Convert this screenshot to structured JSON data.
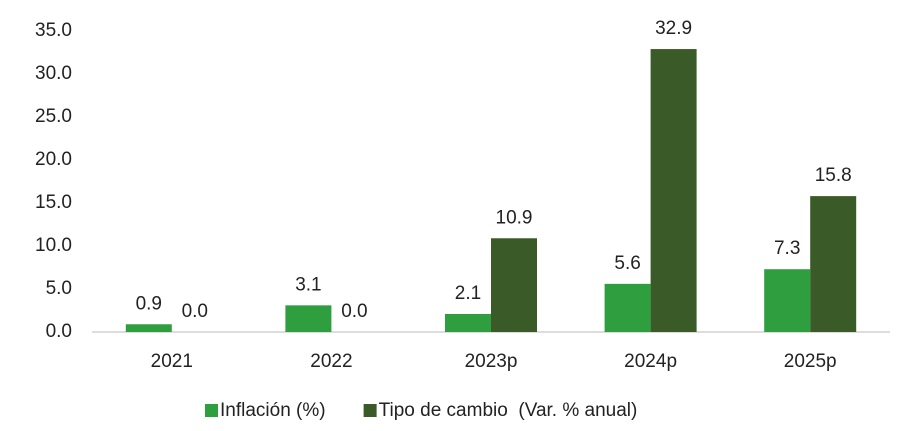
{
  "chart_data": {
    "type": "bar",
    "categories": [
      "2021",
      "2022",
      "2023p",
      "2024p",
      "2025p"
    ],
    "series": [
      {
        "name": "Inflación (%)",
        "color": "#2e9e3e",
        "values": [
          0.9,
          3.1,
          2.1,
          5.6,
          7.3
        ],
        "value_labels": [
          "0.9",
          "3.1",
          "2.1",
          "5.6",
          "7.3"
        ]
      },
      {
        "name": "Tipo de cambio  (Var. % anual)",
        "color": "#3a5a27",
        "values": [
          0,
          0,
          10.9,
          32.9,
          15.8
        ],
        "value_labels": [
          "0.0",
          "0.0",
          "10.9",
          "32.9",
          "15.8"
        ]
      }
    ],
    "ylim": [
      0,
      35
    ],
    "yticks": [
      {
        "value": 0,
        "label": "0.0"
      },
      {
        "value": 5,
        "label": "5.0"
      },
      {
        "value": 10,
        "label": "10.0"
      },
      {
        "value": 15,
        "label": "15.0"
      },
      {
        "value": 20,
        "label": "20.0"
      },
      {
        "value": 25,
        "label": "25.0"
      },
      {
        "value": 30,
        "label": "30.0"
      },
      {
        "value": 35,
        "label": "35.0"
      }
    ],
    "grid": false,
    "legend": "bottom"
  }
}
